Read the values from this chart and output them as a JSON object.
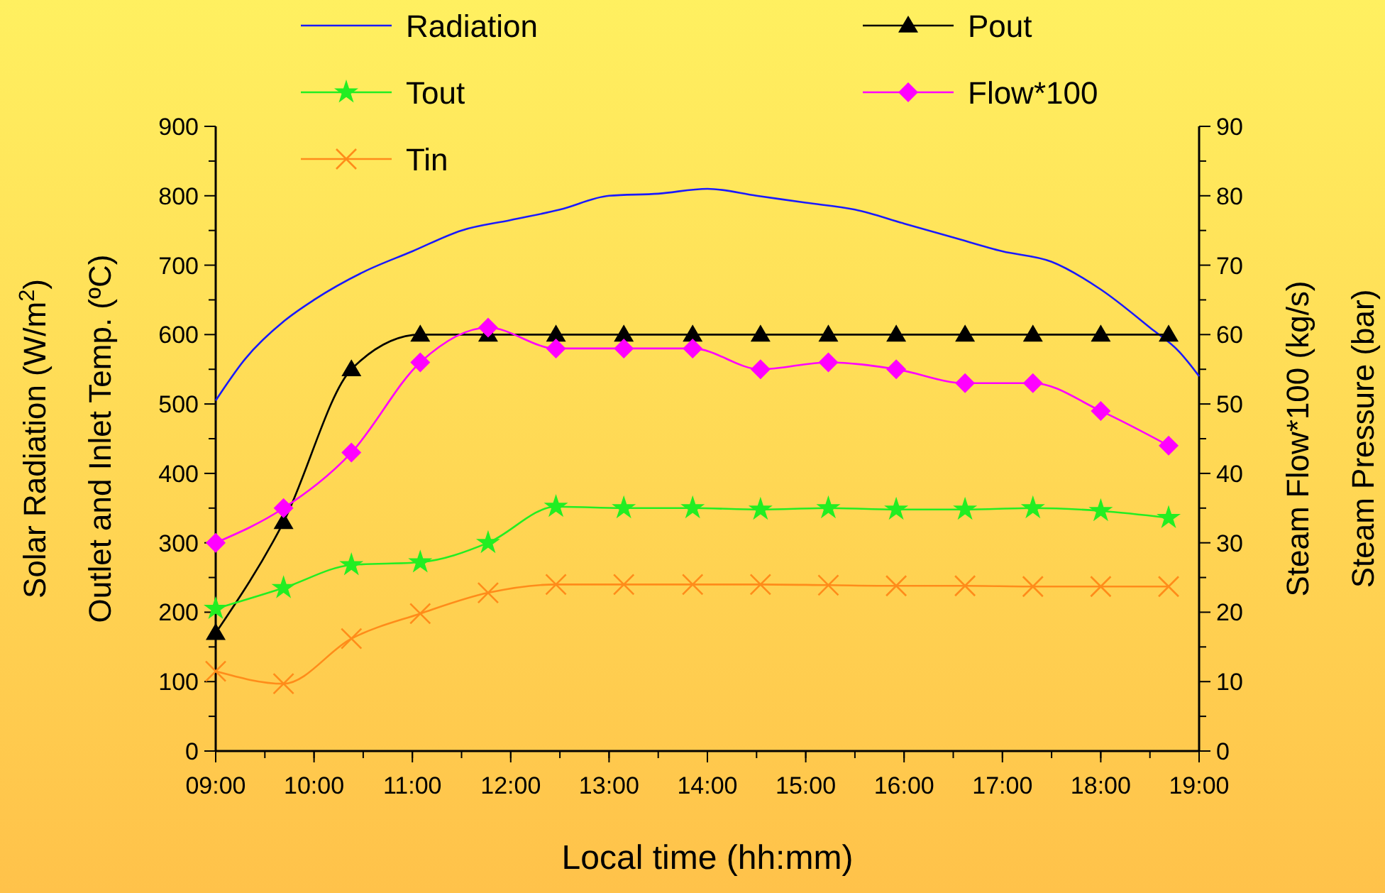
{
  "chart_data": {
    "type": "line",
    "xlabel": "Local time (hh:mm)",
    "ylabel": "Solar Radiation (W/m$^{2}$)\nOutlet and Inlet Temp. (ºC)",
    "y2label": "Steam Flow*100 (kg/s)\nSteam Pressure (bar)",
    "xlim": [
      9,
      19
    ],
    "xticks": [
      {
        "value": 9,
        "label": "09:00"
      },
      {
        "value": 10,
        "label": "10:00"
      },
      {
        "value": 11,
        "label": "11:00"
      },
      {
        "value": 12,
        "label": "12:00"
      },
      {
        "value": 13,
        "label": "13:00"
      },
      {
        "value": 14,
        "label": "14:00"
      },
      {
        "value": 15,
        "label": "15:00"
      },
      {
        "value": 16,
        "label": "16:00"
      },
      {
        "value": 17,
        "label": "17:00"
      },
      {
        "value": 18,
        "label": "18:00"
      },
      {
        "value": 19,
        "label": "19:00"
      }
    ],
    "ylim": [
      0,
      900
    ],
    "yticks": [
      0,
      100,
      200,
      300,
      400,
      500,
      600,
      700,
      800,
      900
    ],
    "y2lim": [
      0,
      90
    ],
    "y2ticks": [
      0,
      10,
      20,
      30,
      40,
      50,
      60,
      70,
      80,
      90
    ],
    "legend": "top",
    "grid": false,
    "line_style": "solid",
    "series": [
      {
        "name": "Radiation",
        "color": "#1a1aff",
        "marker": "none",
        "x": [
          9,
          9.3,
          9.7,
          10,
          10.5,
          11,
          11.5,
          12,
          12.5,
          13,
          13.5,
          14,
          14.5,
          15,
          15.5,
          16,
          16.5,
          17,
          17.5,
          18,
          18.5,
          18.8,
          19
        ],
        "values": [
          505,
          565,
          620,
          650,
          690,
          720,
          750,
          765,
          780,
          800,
          803,
          810,
          800,
          790,
          780,
          760,
          740,
          720,
          705,
          665,
          610,
          575,
          540
        ]
      },
      {
        "name": "Pout",
        "color": "#000000",
        "marker": "triangle",
        "axis": "y2",
        "x": [
          9,
          9.69,
          10.38,
          11.08,
          11.77,
          12.46,
          13.15,
          13.85,
          14.54,
          15.23,
          15.92,
          16.62,
          17.31,
          18,
          18.69
        ],
        "values": [
          17,
          33,
          55,
          60,
          60,
          60,
          60,
          60,
          60,
          60,
          60,
          60,
          60,
          60,
          60
        ]
      },
      {
        "name": "Tout",
        "color": "#22ee22",
        "marker": "star",
        "x": [
          9,
          9.69,
          10.38,
          11.08,
          11.77,
          12.46,
          13.15,
          13.85,
          14.54,
          15.23,
          15.92,
          16.62,
          17.31,
          18,
          18.69
        ],
        "values": [
          205,
          235,
          268,
          272,
          300,
          352,
          350,
          350,
          348,
          350,
          348,
          348,
          350,
          346,
          336
        ]
      },
      {
        "name": "Flow*100",
        "color": "#ff00ff",
        "marker": "diamond",
        "axis": "y2",
        "x": [
          9,
          9.69,
          10.38,
          11.08,
          11.77,
          12.46,
          13.15,
          13.85,
          14.54,
          15.23,
          15.92,
          16.62,
          17.31,
          18,
          18.69
        ],
        "values": [
          30,
          35,
          43,
          56,
          61,
          58,
          58,
          58,
          55,
          56,
          55,
          53,
          53,
          49,
          44
        ]
      },
      {
        "name": "Tin",
        "color": "#ff8c1a",
        "marker": "cross",
        "x": [
          9,
          9.69,
          10.38,
          11.08,
          11.77,
          12.46,
          13.15,
          13.85,
          14.54,
          15.23,
          15.92,
          16.62,
          17.31,
          18,
          18.69
        ],
        "values": [
          115,
          97,
          162,
          198,
          228,
          240,
          240,
          240,
          240,
          239,
          238,
          238,
          237,
          237,
          237
        ]
      }
    ]
  }
}
